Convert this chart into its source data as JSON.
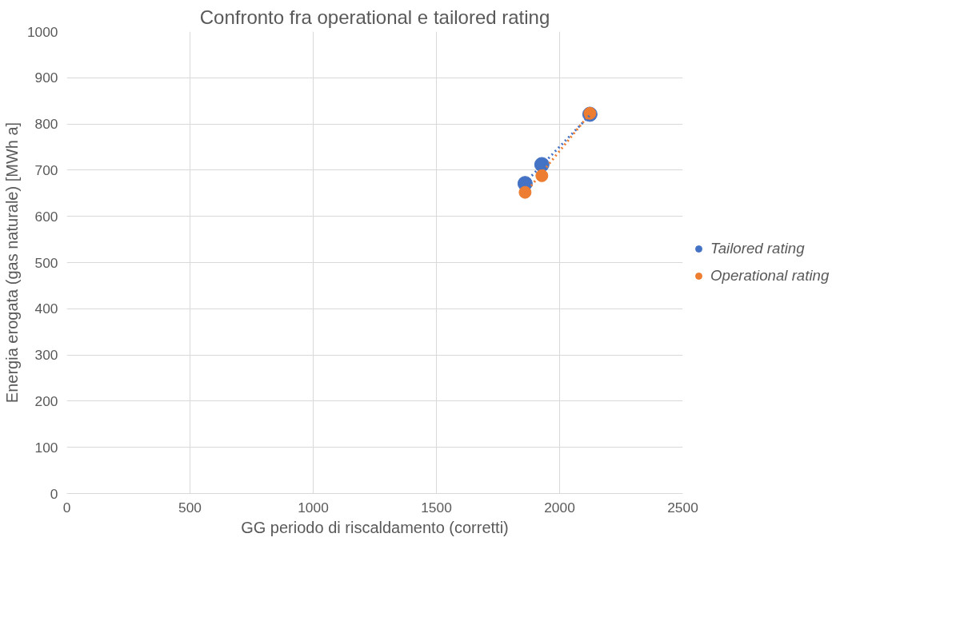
{
  "chart_data": {
    "type": "scatter",
    "title": "Confronto fra operational e tailored rating",
    "xlabel": "GG periodo di riscaldamento (corretti)",
    "ylabel": "Energia erogata (gas naturale) [MWh a]",
    "xlim": [
      0,
      2500
    ],
    "xticks": [
      0,
      500,
      1000,
      1500,
      2000,
      2500
    ],
    "ylim": [
      0,
      1000
    ],
    "yticks": [
      0,
      100,
      200,
      300,
      400,
      500,
      600,
      700,
      800,
      900,
      1000
    ],
    "grid": true,
    "legend": "right",
    "marker": "circle",
    "series": [
      {
        "name": "Tailored rating",
        "color": "#4472c4",
        "x": [
          1860,
          1928,
          2123
        ],
        "values": [
          671,
          712,
          821
        ]
      },
      {
        "name": "Operational rating",
        "color": "#ed7d31",
        "x": [
          1860,
          1928,
          2123
        ],
        "values": [
          652,
          688,
          823
        ]
      },
      {
        "type": "line",
        "line_style": "dotted",
        "marker": "none",
        "color": "#4472c4",
        "x": [
          1860,
          2123
        ],
        "values": [
          673,
          819
        ]
      },
      {
        "type": "line",
        "line_style": "dotted",
        "marker": "none",
        "color": "#ed7d31",
        "x": [
          1860,
          2123
        ],
        "values": [
          650,
          822
        ]
      }
    ]
  }
}
